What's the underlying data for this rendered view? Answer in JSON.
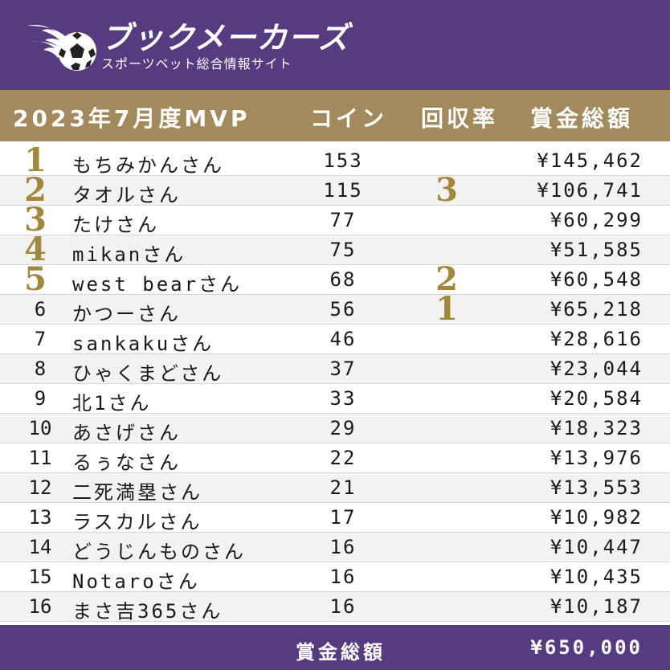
{
  "brand": {
    "name": "ブックメーカーズ",
    "tagline": "スポーツベット総合情報サイト",
    "logo_icon": "flaming-soccer-ball-icon"
  },
  "header": {
    "title": "2023年7月度MVP",
    "coin": "コイン",
    "rate": "回収率",
    "prize": "賞金総額"
  },
  "colors": {
    "brand": "#563b80",
    "header_band": "#a28a5d",
    "medal": "#a2883c"
  },
  "rows": [
    {
      "rank": "1",
      "name": "もちみかんさん",
      "coin": "153",
      "rate_rank": "",
      "prize": "¥145,462"
    },
    {
      "rank": "2",
      "name": "タオルさん",
      "coin": "115",
      "rate_rank": "3",
      "prize": "¥106,741"
    },
    {
      "rank": "3",
      "name": "たけさん",
      "coin": "77",
      "rate_rank": "",
      "prize": "¥60,299"
    },
    {
      "rank": "4",
      "name": "mikanさん",
      "coin": "75",
      "rate_rank": "",
      "prize": "¥51,585"
    },
    {
      "rank": "5",
      "name": "west bearさん",
      "coin": "68",
      "rate_rank": "2",
      "prize": "¥60,548"
    },
    {
      "rank": "6",
      "name": "かつーさん",
      "coin": "56",
      "rate_rank": "1",
      "prize": "¥65,218"
    },
    {
      "rank": "7",
      "name": "sankakuさん",
      "coin": "46",
      "rate_rank": "",
      "prize": "¥28,616"
    },
    {
      "rank": "8",
      "name": "ひゃくまどさん",
      "coin": "37",
      "rate_rank": "",
      "prize": "¥23,044"
    },
    {
      "rank": "9",
      "name": "北1さん",
      "coin": "33",
      "rate_rank": "",
      "prize": "¥20,584"
    },
    {
      "rank": "10",
      "name": "あさげさん",
      "coin": "29",
      "rate_rank": "",
      "prize": "¥18,323"
    },
    {
      "rank": "11",
      "name": "るぅなさん",
      "coin": "22",
      "rate_rank": "",
      "prize": "¥13,976"
    },
    {
      "rank": "12",
      "name": "二死満塁さん",
      "coin": "21",
      "rate_rank": "",
      "prize": "¥13,553"
    },
    {
      "rank": "13",
      "name": "ラスカルさん",
      "coin": "17",
      "rate_rank": "",
      "prize": "¥10,982"
    },
    {
      "rank": "14",
      "name": "どうじんものさん",
      "coin": "16",
      "rate_rank": "",
      "prize": "¥10,447"
    },
    {
      "rank": "15",
      "name": "Notaroさん",
      "coin": "16",
      "rate_rank": "",
      "prize": "¥10,435"
    },
    {
      "rank": "16",
      "name": "まさ吉365さん",
      "coin": "16",
      "rate_rank": "",
      "prize": "¥10,187"
    }
  ],
  "footer": {
    "label": "賞金総額",
    "total": "¥650,000"
  }
}
